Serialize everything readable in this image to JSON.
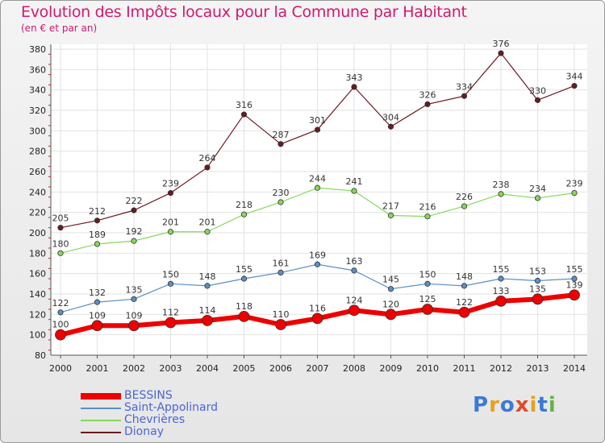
{
  "header": {
    "title": "Evolution des Impôts locaux pour la Commune par Habitant",
    "subtitle": "(en € et par an)"
  },
  "logo": {
    "text": "Proxiti",
    "colors": [
      "#3a7bd5",
      "#e8a020",
      "#3a7bd5",
      "#e04a2a",
      "#e8a020",
      "#3a7bd5",
      "#6ab04c"
    ]
  },
  "chart_data": {
    "type": "line",
    "title": "Evolution des Impôts locaux pour la Commune par Habitant",
    "subtitle": "(en € et par an)",
    "x": [
      "2000",
      "2001",
      "2002",
      "2003",
      "2004",
      "2005",
      "2006",
      "2007",
      "2008",
      "2009",
      "2010",
      "2011",
      "2012",
      "2013",
      "2014"
    ],
    "ylim": [
      80,
      380
    ],
    "yticks": [
      80,
      100,
      120,
      140,
      160,
      180,
      200,
      220,
      240,
      260,
      280,
      300,
      320,
      340,
      360,
      380
    ],
    "grid": true,
    "legend_position": "bottom-left",
    "series": [
      {
        "name": "Dionay",
        "color": "#6b1a20",
        "width": 1.2,
        "marker": 3.2,
        "values": [
          205,
          212,
          222,
          239,
          264,
          316,
          287,
          301,
          343,
          304,
          326,
          334,
          376,
          330,
          344
        ]
      },
      {
        "name": "Chevrières",
        "color": "#86d85a",
        "width": 1.2,
        "marker": 3.2,
        "values": [
          180,
          189,
          192,
          201,
          201,
          218,
          230,
          244,
          241,
          217,
          216,
          226,
          238,
          234,
          239
        ]
      },
      {
        "name": "Saint-Appolinard",
        "color": "#5a8fc8",
        "width": 1.2,
        "marker": 3.2,
        "values": [
          122,
          132,
          135,
          150,
          148,
          155,
          161,
          169,
          163,
          145,
          150,
          148,
          155,
          153,
          155
        ]
      },
      {
        "name": "BESSINS",
        "color": "#ee0000",
        "width": 6,
        "marker": 6.5,
        "values": [
          100,
          109,
          109,
          112,
          114,
          118,
          110,
          116,
          124,
          120,
          125,
          122,
          133,
          135,
          139
        ]
      }
    ],
    "legend": [
      "BESSINS",
      "Saint-Appolinard",
      "Chevrières",
      "Dionay"
    ]
  }
}
